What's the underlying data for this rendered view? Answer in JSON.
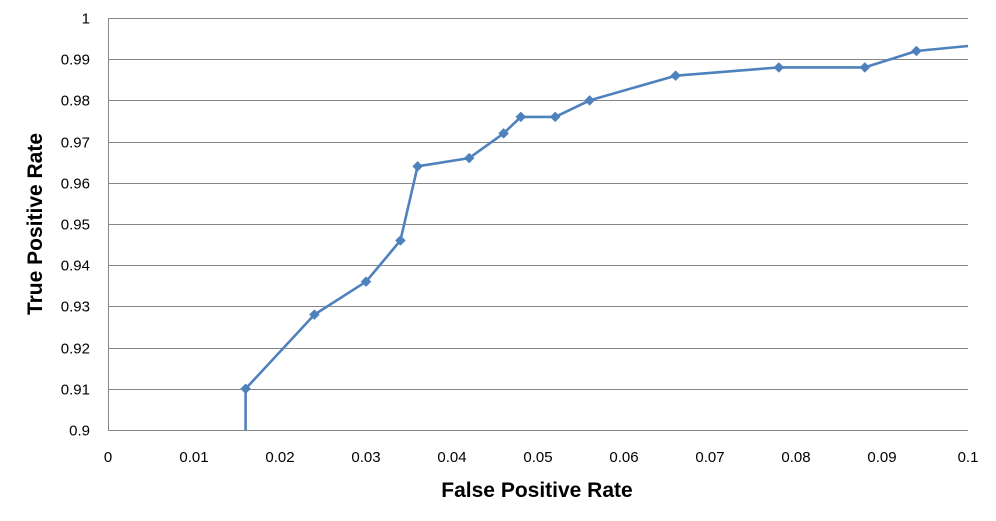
{
  "chart_data": {
    "type": "line",
    "title": "",
    "xlabel": "False Positive Rate",
    "ylabel": "True Positive Rate",
    "xlim": [
      0,
      0.1
    ],
    "ylim": [
      0.9,
      1
    ],
    "x_ticks": [
      "0",
      "0.01",
      "0.02",
      "0.03",
      "0.04",
      "0.05",
      "0.06",
      "0.07",
      "0.08",
      "0.09",
      "0.1"
    ],
    "y_ticks": [
      "0.9",
      "0.91",
      "0.92",
      "0.93",
      "0.94",
      "0.95",
      "0.96",
      "0.97",
      "0.98",
      "0.99",
      "1"
    ],
    "grid": "horizontal",
    "legend": "none",
    "line_color": "#4F81BD",
    "series": [
      {
        "points": [
          {
            "x": 0.016,
            "y": 0.9,
            "marker": false
          },
          {
            "x": 0.016,
            "y": 0.91,
            "marker": true
          },
          {
            "x": 0.024,
            "y": 0.928,
            "marker": true
          },
          {
            "x": 0.03,
            "y": 0.936,
            "marker": true
          },
          {
            "x": 0.034,
            "y": 0.946,
            "marker": true
          },
          {
            "x": 0.036,
            "y": 0.964,
            "marker": true
          },
          {
            "x": 0.042,
            "y": 0.966,
            "marker": true
          },
          {
            "x": 0.046,
            "y": 0.972,
            "marker": true
          },
          {
            "x": 0.048,
            "y": 0.976,
            "marker": true
          },
          {
            "x": 0.052,
            "y": 0.976,
            "marker": true
          },
          {
            "x": 0.056,
            "y": 0.98,
            "marker": true
          },
          {
            "x": 0.066,
            "y": 0.986,
            "marker": true
          },
          {
            "x": 0.078,
            "y": 0.988,
            "marker": true
          },
          {
            "x": 0.088,
            "y": 0.988,
            "marker": true
          },
          {
            "x": 0.094,
            "y": 0.992,
            "marker": true
          },
          {
            "x": 0.1,
            "y": 0.9932,
            "marker": false
          }
        ]
      }
    ]
  }
}
